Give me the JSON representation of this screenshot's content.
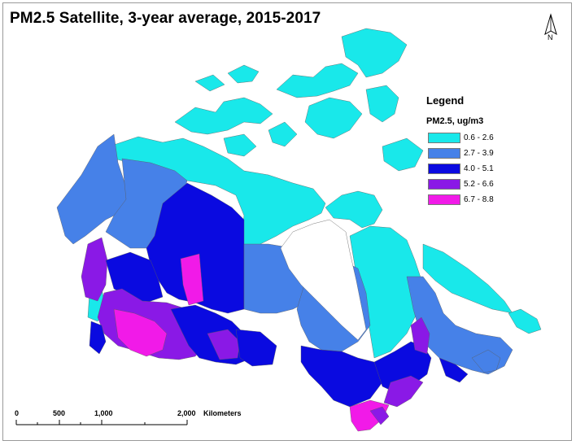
{
  "title": "PM2.5 Satellite, 3-year average, 2015-2017",
  "north_arrow": {
    "label": "N",
    "icon": "north-arrow-icon"
  },
  "legend": {
    "title": "Legend",
    "subtitle": "PM2.5, ug/m3",
    "classes": [
      {
        "label": "0.6 - 2.6",
        "color": "#19e8ea"
      },
      {
        "label": "2.7 - 3.9",
        "color": "#4681e8"
      },
      {
        "label": "4.0 - 5.1",
        "color": "#0a0ae0"
      },
      {
        "label": "5.2 - 6.6",
        "color": "#8a19e6"
      },
      {
        "label": "6.7 - 8.8",
        "color": "#f11ae8"
      }
    ]
  },
  "scale_bar": {
    "ticks": [
      "0",
      "500",
      "1,000",
      "2,000"
    ],
    "unit": "Kilometers"
  }
}
